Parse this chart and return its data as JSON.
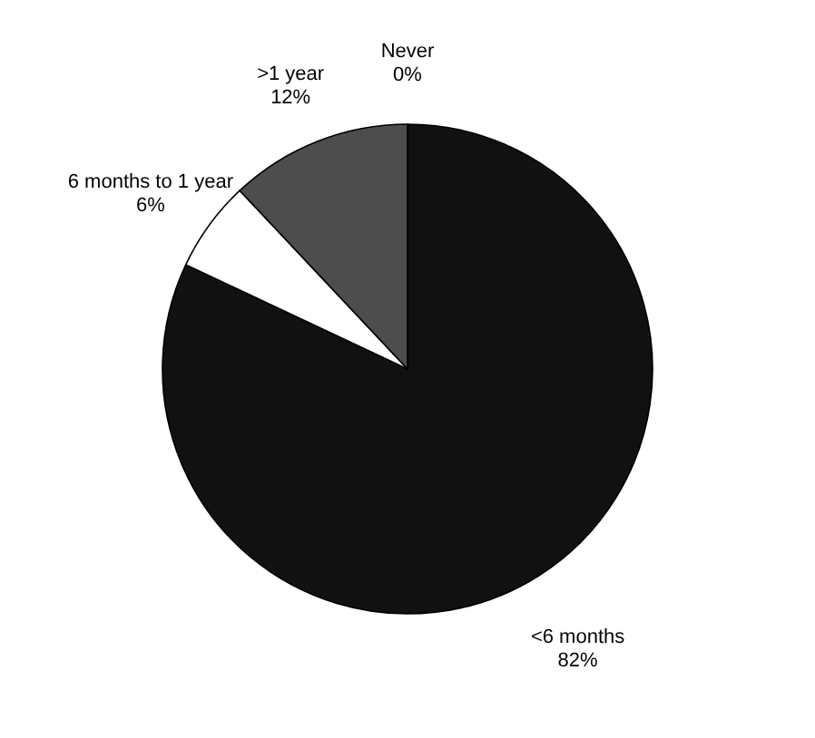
{
  "chart_data": {
    "type": "pie",
    "categories": [
      "Never",
      "<6 months",
      "6 months to 1 year",
      ">1 year"
    ],
    "values": [
      0,
      82,
      6,
      12
    ],
    "colors": [
      "#000000",
      "#111111",
      "#ffffff",
      "#4d4d4d"
    ],
    "value_labels": [
      "0%",
      "82%",
      "6%",
      "12%"
    ]
  }
}
